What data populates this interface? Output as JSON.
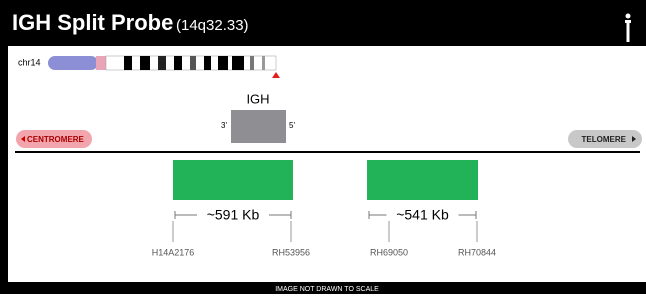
{
  "header": {
    "title": "IGH Split Probe",
    "locus": "(14q32.33)"
  },
  "chromosome": {
    "label": "chr14"
  },
  "gene": {
    "label": "IGH",
    "end_3": "3'",
    "end_5": "5'"
  },
  "centromere": "CENTROMERE",
  "telomere": "TELOMERE",
  "probes": [
    {
      "size": "~591 Kb",
      "start_marker": "H14A2176",
      "end_marker": "RH53956"
    },
    {
      "size": "~541 Kb",
      "start_marker": "RH69050",
      "end_marker": "RH70844"
    }
  ],
  "footer": "IMAGE NOT DRAWN TO SCALE"
}
